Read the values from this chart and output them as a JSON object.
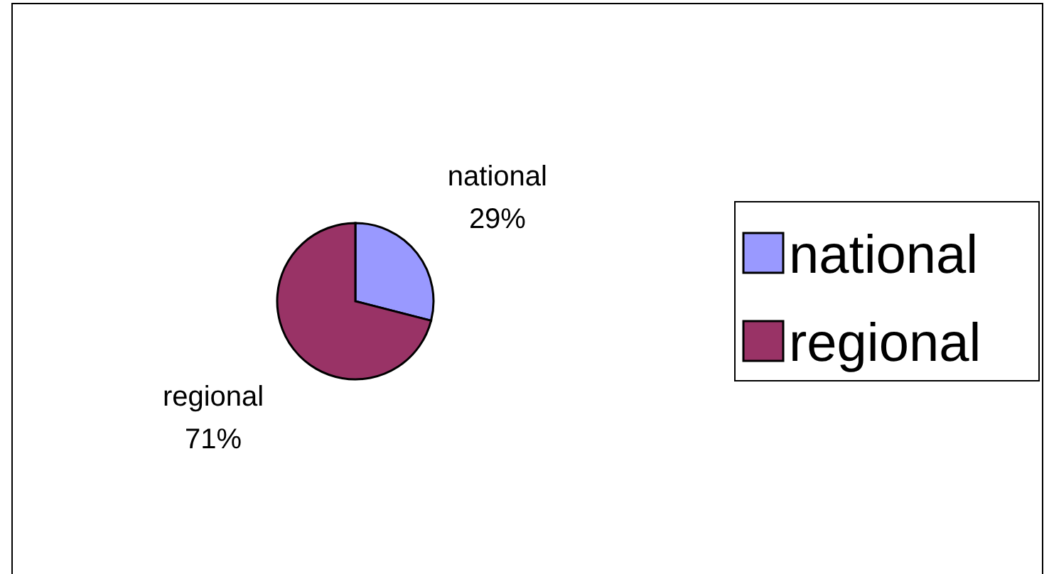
{
  "chart_data": {
    "type": "pie",
    "categories": [
      "national",
      "regional"
    ],
    "values": [
      29,
      71
    ],
    "value_labels": [
      "29%",
      "71%"
    ],
    "colors": [
      "#9999ff",
      "#993366"
    ],
    "legend": "right"
  }
}
